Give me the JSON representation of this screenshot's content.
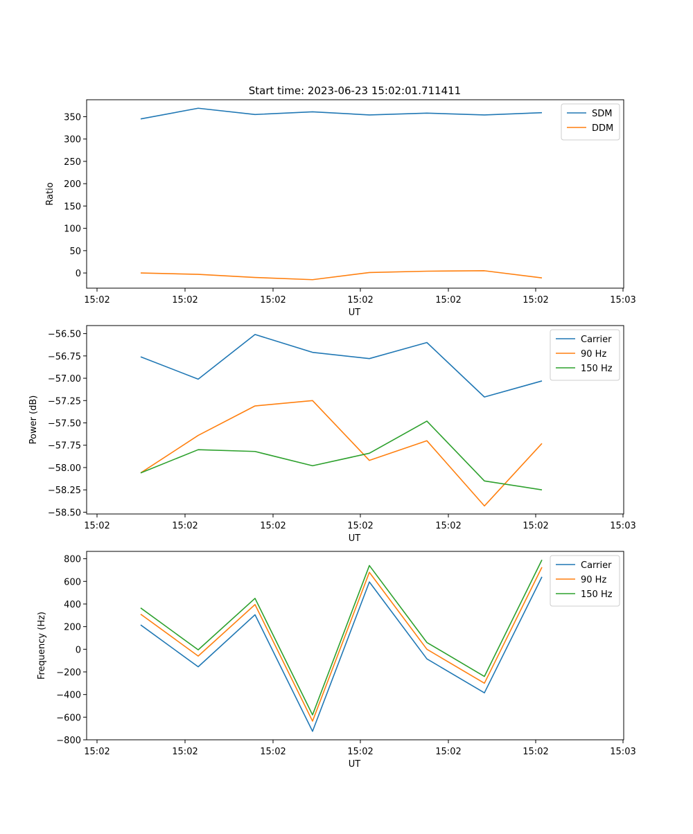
{
  "title": "Start time: 2023-06-23 15:02:01.711411",
  "series_colors": {
    "c0": "#1f77b4",
    "c1": "#ff7f0e",
    "c2": "#2ca02c"
  },
  "chart_data": [
    {
      "type": "line",
      "xlabel": "UT",
      "ylabel": "Ratio",
      "x_tick_labels": [
        "15:02",
        "15:02",
        "15:02",
        "15:02",
        "15:02",
        "15:02",
        "15:03"
      ],
      "y_ticks": [
        0,
        50,
        100,
        150,
        200,
        250,
        300,
        350
      ],
      "y_tick_labels": [
        "0",
        "50",
        "100",
        "150",
        "200",
        "250",
        "300",
        "350"
      ],
      "ylim": [
        -34,
        388
      ],
      "legend_position": "top-right",
      "series": [
        {
          "name": "SDM",
          "values": [
            345,
            369,
            355,
            361,
            354,
            358,
            354,
            359
          ]
        },
        {
          "name": "DDM",
          "values": [
            0,
            -3,
            -10,
            -15,
            1,
            4,
            5,
            -11
          ]
        }
      ]
    },
    {
      "type": "line",
      "xlabel": "UT",
      "ylabel": "Power (dB)",
      "x_tick_labels": [
        "15:02",
        "15:02",
        "15:02",
        "15:02",
        "15:02",
        "15:02",
        "15:03"
      ],
      "y_ticks": [
        -58.5,
        -58.25,
        -58.0,
        -57.75,
        -57.5,
        -57.25,
        -57.0,
        -56.75,
        -56.5
      ],
      "y_tick_labels": [
        "−58.50",
        "−58.25",
        "−58.00",
        "−57.75",
        "−57.50",
        "−57.25",
        "−57.00",
        "−56.75",
        "−56.50"
      ],
      "ylim": [
        -58.52,
        -56.41
      ],
      "legend_position": "top-right",
      "series": [
        {
          "name": "Carrier",
          "values": [
            -56.76,
            -57.01,
            -56.51,
            -56.71,
            -56.78,
            -56.6,
            -57.21,
            -57.03
          ]
        },
        {
          "name": "90 Hz",
          "values": [
            -58.06,
            -57.64,
            -57.31,
            -57.25,
            -57.92,
            -57.7,
            -58.43,
            -57.73
          ]
        },
        {
          "name": "150 Hz",
          "values": [
            -58.06,
            -57.8,
            -57.82,
            -57.98,
            -57.84,
            -57.48,
            -58.15,
            -58.25
          ]
        }
      ]
    },
    {
      "type": "line",
      "xlabel": "UT",
      "ylabel": "Frequency (Hz)",
      "x_tick_labels": [
        "15:02",
        "15:02",
        "15:02",
        "15:02",
        "15:02",
        "15:02",
        "15:03"
      ],
      "y_ticks": [
        -800,
        -600,
        -400,
        -200,
        0,
        200,
        400,
        600,
        800
      ],
      "y_tick_labels": [
        "−800",
        "−600",
        "−400",
        "−200",
        "0",
        "200",
        "400",
        "600",
        "800"
      ],
      "ylim": [
        -800,
        865
      ],
      "legend_position": "top-right",
      "series": [
        {
          "name": "Carrier",
          "values": [
            215,
            -155,
            305,
            -725,
            595,
            -85,
            -385,
            640
          ]
        },
        {
          "name": "90 Hz",
          "values": [
            310,
            -60,
            395,
            -635,
            680,
            0,
            -300,
            725
          ]
        },
        {
          "name": "150 Hz",
          "values": [
            365,
            -5,
            450,
            -580,
            740,
            60,
            -240,
            790
          ]
        }
      ]
    }
  ]
}
